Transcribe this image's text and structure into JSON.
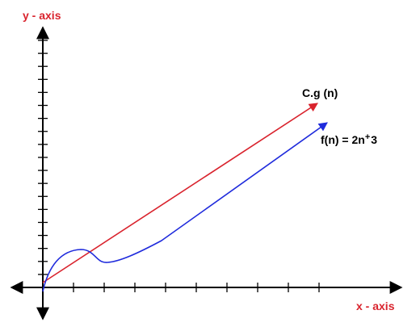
{
  "diagram": {
    "y_axis_label": "y - axis",
    "x_axis_label": "x - axis",
    "labels": {
      "cg": "C.g (n)",
      "f_main": "f(n) = 2n",
      "f_sup": "+",
      "f_tail": "3"
    },
    "colors": {
      "axis_label": "#d9232d",
      "axes": "#000000",
      "cg_line": "#d9232d",
      "f_curve": "#1f2bdc",
      "text": "#000000"
    },
    "tick_marks": {
      "y_count": 19,
      "x_count": 9
    }
  }
}
